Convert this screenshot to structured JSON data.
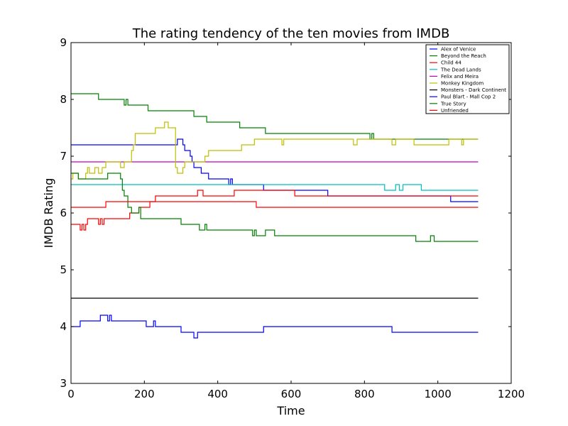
{
  "chart_data": {
    "type": "line",
    "title": "The rating tendency of the ten movies from IMDB",
    "xlabel": "Time",
    "ylabel": "IMDB Rating",
    "xlim": [
      0,
      1200
    ],
    "ylim": [
      3,
      9
    ],
    "xticks": [
      "0",
      "200",
      "400",
      "600",
      "800",
      "1000",
      "1200"
    ],
    "yticks": [
      "3",
      "4",
      "5",
      "6",
      "7",
      "8",
      "9"
    ],
    "legend_position": "top-right",
    "grid": false,
    "series": [
      {
        "name": "Alex of Venice",
        "color": "#0000ff",
        "points": [
          [
            0,
            7.2
          ],
          [
            290,
            7.2
          ],
          [
            290,
            7.3
          ],
          [
            305,
            7.3
          ],
          [
            305,
            7.2
          ],
          [
            310,
            7.2
          ],
          [
            310,
            7.1
          ],
          [
            325,
            7.1
          ],
          [
            325,
            7.0
          ],
          [
            330,
            7.0
          ],
          [
            330,
            6.9
          ],
          [
            335,
            6.9
          ],
          [
            335,
            6.8
          ],
          [
            355,
            6.8
          ],
          [
            355,
            6.7
          ],
          [
            375,
            6.7
          ],
          [
            375,
            6.6
          ],
          [
            430,
            6.6
          ],
          [
            430,
            6.5
          ],
          [
            435,
            6.5
          ],
          [
            435,
            6.6
          ],
          [
            440,
            6.6
          ],
          [
            440,
            6.5
          ],
          [
            525,
            6.5
          ],
          [
            525,
            6.4
          ],
          [
            700,
            6.4
          ],
          [
            700,
            6.3
          ],
          [
            1035,
            6.3
          ],
          [
            1035,
            6.2
          ],
          [
            1110,
            6.2
          ]
        ]
      },
      {
        "name": "Beyond the Reach",
        "color": "#008000",
        "points": [
          [
            0,
            8.1
          ],
          [
            75,
            8.1
          ],
          [
            75,
            8.0
          ],
          [
            145,
            8.0
          ],
          [
            145,
            7.9
          ],
          [
            150,
            7.9
          ],
          [
            150,
            8.0
          ],
          [
            155,
            8.0
          ],
          [
            155,
            7.9
          ],
          [
            210,
            7.9
          ],
          [
            210,
            7.8
          ],
          [
            335,
            7.8
          ],
          [
            335,
            7.7
          ],
          [
            370,
            7.7
          ],
          [
            370,
            7.6
          ],
          [
            460,
            7.6
          ],
          [
            460,
            7.5
          ],
          [
            530,
            7.5
          ],
          [
            530,
            7.4
          ],
          [
            815,
            7.4
          ],
          [
            815,
            7.3
          ],
          [
            820,
            7.3
          ],
          [
            820,
            7.4
          ],
          [
            825,
            7.4
          ],
          [
            825,
            7.3
          ],
          [
            1110,
            7.3
          ]
        ]
      },
      {
        "name": "Child 44",
        "color": "#ff0000",
        "points": [
          [
            0,
            5.8
          ],
          [
            25,
            5.8
          ],
          [
            25,
            5.7
          ],
          [
            30,
            5.7
          ],
          [
            30,
            5.8
          ],
          [
            35,
            5.8
          ],
          [
            35,
            5.7
          ],
          [
            40,
            5.7
          ],
          [
            40,
            5.8
          ],
          [
            45,
            5.8
          ],
          [
            45,
            5.9
          ],
          [
            75,
            5.9
          ],
          [
            75,
            5.8
          ],
          [
            80,
            5.8
          ],
          [
            80,
            5.9
          ],
          [
            85,
            5.9
          ],
          [
            85,
            5.8
          ],
          [
            90,
            5.8
          ],
          [
            90,
            5.9
          ],
          [
            160,
            5.9
          ],
          [
            160,
            6.0
          ],
          [
            185,
            6.0
          ],
          [
            185,
            6.1
          ],
          [
            215,
            6.1
          ],
          [
            215,
            6.2
          ],
          [
            230,
            6.2
          ],
          [
            230,
            6.3
          ],
          [
            345,
            6.3
          ],
          [
            345,
            6.4
          ],
          [
            360,
            6.4
          ],
          [
            360,
            6.3
          ],
          [
            445,
            6.3
          ],
          [
            445,
            6.4
          ],
          [
            610,
            6.4
          ],
          [
            610,
            6.3
          ],
          [
            1110,
            6.3
          ]
        ]
      },
      {
        "name": "The Dead Lands",
        "color": "#00bfbf",
        "points": [
          [
            0,
            6.5
          ],
          [
            855,
            6.5
          ],
          [
            855,
            6.4
          ],
          [
            885,
            6.4
          ],
          [
            885,
            6.5
          ],
          [
            895,
            6.5
          ],
          [
            895,
            6.4
          ],
          [
            905,
            6.4
          ],
          [
            905,
            6.5
          ],
          [
            955,
            6.5
          ],
          [
            955,
            6.4
          ],
          [
            1110,
            6.4
          ]
        ]
      },
      {
        "name": "Felix and Meira",
        "color": "#bf00bf",
        "points": [
          [
            0,
            6.9
          ],
          [
            1110,
            6.9
          ]
        ]
      },
      {
        "name": "Monkey Kingdom",
        "color": "#bfbf00",
        "points": [
          [
            0,
            6.6
          ],
          [
            5,
            6.6
          ],
          [
            5,
            6.7
          ],
          [
            20,
            6.7
          ],
          [
            20,
            6.6
          ],
          [
            40,
            6.6
          ],
          [
            40,
            6.7
          ],
          [
            45,
            6.7
          ],
          [
            45,
            6.8
          ],
          [
            50,
            6.8
          ],
          [
            50,
            6.7
          ],
          [
            65,
            6.7
          ],
          [
            65,
            6.8
          ],
          [
            75,
            6.8
          ],
          [
            75,
            6.7
          ],
          [
            85,
            6.7
          ],
          [
            85,
            6.8
          ],
          [
            95,
            6.8
          ],
          [
            95,
            6.9
          ],
          [
            135,
            6.9
          ],
          [
            135,
            6.8
          ],
          [
            145,
            6.8
          ],
          [
            145,
            6.9
          ],
          [
            165,
            6.9
          ],
          [
            165,
            7.1
          ],
          [
            170,
            7.1
          ],
          [
            170,
            7.2
          ],
          [
            175,
            7.2
          ],
          [
            175,
            7.4
          ],
          [
            230,
            7.4
          ],
          [
            230,
            7.5
          ],
          [
            255,
            7.5
          ],
          [
            255,
            7.6
          ],
          [
            265,
            7.6
          ],
          [
            265,
            7.5
          ],
          [
            285,
            7.5
          ],
          [
            285,
            6.8
          ],
          [
            290,
            6.8
          ],
          [
            290,
            6.7
          ],
          [
            305,
            6.7
          ],
          [
            305,
            6.8
          ],
          [
            310,
            6.8
          ],
          [
            310,
            6.9
          ],
          [
            365,
            6.9
          ],
          [
            365,
            7.0
          ],
          [
            375,
            7.0
          ],
          [
            375,
            7.1
          ],
          [
            465,
            7.1
          ],
          [
            465,
            7.2
          ],
          [
            500,
            7.2
          ],
          [
            500,
            7.3
          ],
          [
            575,
            7.3
          ],
          [
            575,
            7.2
          ],
          [
            580,
            7.2
          ],
          [
            580,
            7.3
          ],
          [
            770,
            7.3
          ],
          [
            770,
            7.2
          ],
          [
            780,
            7.2
          ],
          [
            780,
            7.3
          ],
          [
            875,
            7.3
          ],
          [
            875,
            7.2
          ],
          [
            885,
            7.2
          ],
          [
            885,
            7.3
          ],
          [
            935,
            7.3
          ],
          [
            935,
            7.2
          ],
          [
            1030,
            7.2
          ],
          [
            1030,
            7.3
          ],
          [
            1065,
            7.3
          ],
          [
            1065,
            7.2
          ],
          [
            1070,
            7.2
          ],
          [
            1070,
            7.3
          ],
          [
            1110,
            7.3
          ]
        ]
      },
      {
        "name": "Monsters - Dark Continent",
        "color": "#000000",
        "points": [
          [
            0,
            4.5
          ],
          [
            1110,
            4.5
          ]
        ]
      },
      {
        "name": "Paul Blart - Mall Cop 2",
        "color": "#0000ff",
        "points": [
          [
            0,
            4.0
          ],
          [
            25,
            4.0
          ],
          [
            25,
            4.1
          ],
          [
            80,
            4.1
          ],
          [
            80,
            4.2
          ],
          [
            100,
            4.2
          ],
          [
            100,
            4.1
          ],
          [
            105,
            4.1
          ],
          [
            105,
            4.2
          ],
          [
            110,
            4.2
          ],
          [
            110,
            4.1
          ],
          [
            205,
            4.1
          ],
          [
            205,
            4.0
          ],
          [
            225,
            4.0
          ],
          [
            225,
            4.1
          ],
          [
            230,
            4.1
          ],
          [
            230,
            4.0
          ],
          [
            300,
            4.0
          ],
          [
            300,
            3.9
          ],
          [
            335,
            3.9
          ],
          [
            335,
            3.8
          ],
          [
            345,
            3.8
          ],
          [
            345,
            3.9
          ],
          [
            525,
            3.9
          ],
          [
            525,
            4.0
          ],
          [
            875,
            4.0
          ],
          [
            875,
            3.9
          ],
          [
            1110,
            3.9
          ]
        ]
      },
      {
        "name": "True Story",
        "color": "#008000",
        "points": [
          [
            0,
            6.7
          ],
          [
            20,
            6.7
          ],
          [
            20,
            6.6
          ],
          [
            100,
            6.6
          ],
          [
            100,
            6.7
          ],
          [
            135,
            6.7
          ],
          [
            135,
            6.6
          ],
          [
            140,
            6.6
          ],
          [
            140,
            6.4
          ],
          [
            145,
            6.4
          ],
          [
            145,
            6.3
          ],
          [
            155,
            6.3
          ],
          [
            155,
            6.1
          ],
          [
            165,
            6.1
          ],
          [
            165,
            6.0
          ],
          [
            185,
            6.0
          ],
          [
            185,
            6.1
          ],
          [
            190,
            6.1
          ],
          [
            190,
            5.9
          ],
          [
            300,
            5.9
          ],
          [
            300,
            5.8
          ],
          [
            350,
            5.8
          ],
          [
            350,
            5.7
          ],
          [
            365,
            5.7
          ],
          [
            365,
            5.8
          ],
          [
            370,
            5.8
          ],
          [
            370,
            5.7
          ],
          [
            495,
            5.7
          ],
          [
            495,
            5.6
          ],
          [
            500,
            5.6
          ],
          [
            500,
            5.7
          ],
          [
            505,
            5.7
          ],
          [
            505,
            5.6
          ],
          [
            530,
            5.6
          ],
          [
            530,
            5.7
          ],
          [
            555,
            5.7
          ],
          [
            555,
            5.6
          ],
          [
            940,
            5.6
          ],
          [
            940,
            5.5
          ],
          [
            980,
            5.5
          ],
          [
            980,
            5.6
          ],
          [
            990,
            5.6
          ],
          [
            990,
            5.5
          ],
          [
            1110,
            5.5
          ]
        ]
      },
      {
        "name": "Unfriended",
        "color": "#ff0000",
        "points": [
          [
            0,
            6.1
          ],
          [
            95,
            6.1
          ],
          [
            95,
            6.2
          ],
          [
            505,
            6.2
          ],
          [
            505,
            6.1
          ],
          [
            1110,
            6.1
          ]
        ]
      }
    ]
  }
}
